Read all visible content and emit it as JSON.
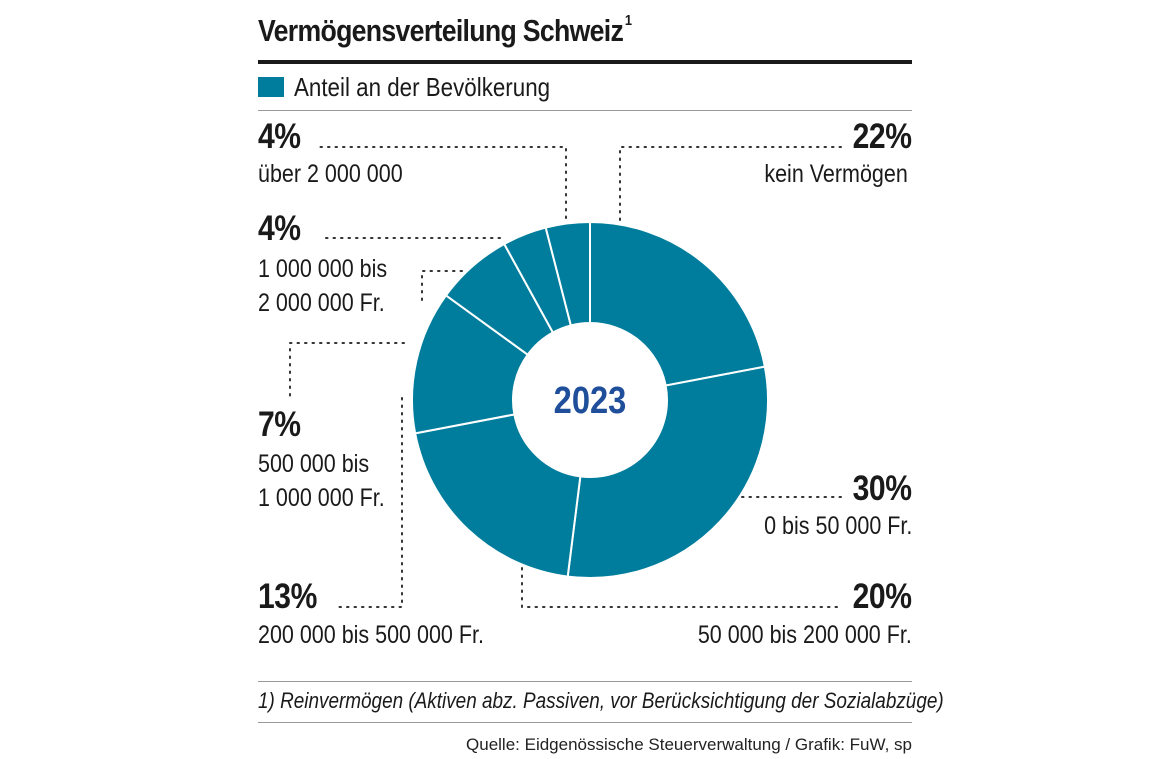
{
  "title": "Vermögensverteilung Schweiz",
  "title_footnote_mark": "1",
  "legend": {
    "label": "Anteil an der Bevölkerung",
    "color": "#007d9c"
  },
  "chart_data": {
    "type": "pie",
    "subtype": "donut",
    "center_label": "2023",
    "unit": "%",
    "series_name": "Anteil an der Bevölkerung",
    "slices": [
      {
        "label": "kein Vermögen",
        "value": 22,
        "value_label": "22%"
      },
      {
        "label": "0 bis 50 000 Fr.",
        "value": 30,
        "value_label": "30%"
      },
      {
        "label": "50 000 bis 200 000 Fr.",
        "value": 20,
        "value_label": "20%"
      },
      {
        "label": "200 000 bis 500 000 Fr.",
        "value": 13,
        "value_label": "13%"
      },
      {
        "label": "500 000 bis 1 000 000 Fr.",
        "value": 7,
        "value_label": "7%"
      },
      {
        "label": "1 000 000 bis 2 000 000 Fr.",
        "value": 4,
        "value_label": "4%"
      },
      {
        "label": "über 2 000 000",
        "value": 4,
        "value_label": "4%"
      }
    ],
    "colors": {
      "slice": "#007d9c",
      "separator": "#ffffff",
      "center_text": "#1f4e9b"
    }
  },
  "labels": {
    "s0_line1": "kein Vermögen",
    "s1_line1": "0 bis 50 000 Fr.",
    "s2_line1": "50 000 bis 200 000 Fr.",
    "s3_line1": "200 000 bis 500 000 Fr.",
    "s4_line1": "500 000 bis",
    "s4_line2": "1 000 000 Fr.",
    "s5_line1": "1 000 000 bis",
    "s5_line2": "2 000 000 Fr.",
    "s6_line1": "über 2 000 000"
  },
  "footnote": "1) Reinvermögen (Aktiven abz. Passiven, vor Berücksichtigung der Sozialabzüge)",
  "source": "Quelle: Eidgenössische Steuerverwaltung / Grafik: FuW, sp"
}
